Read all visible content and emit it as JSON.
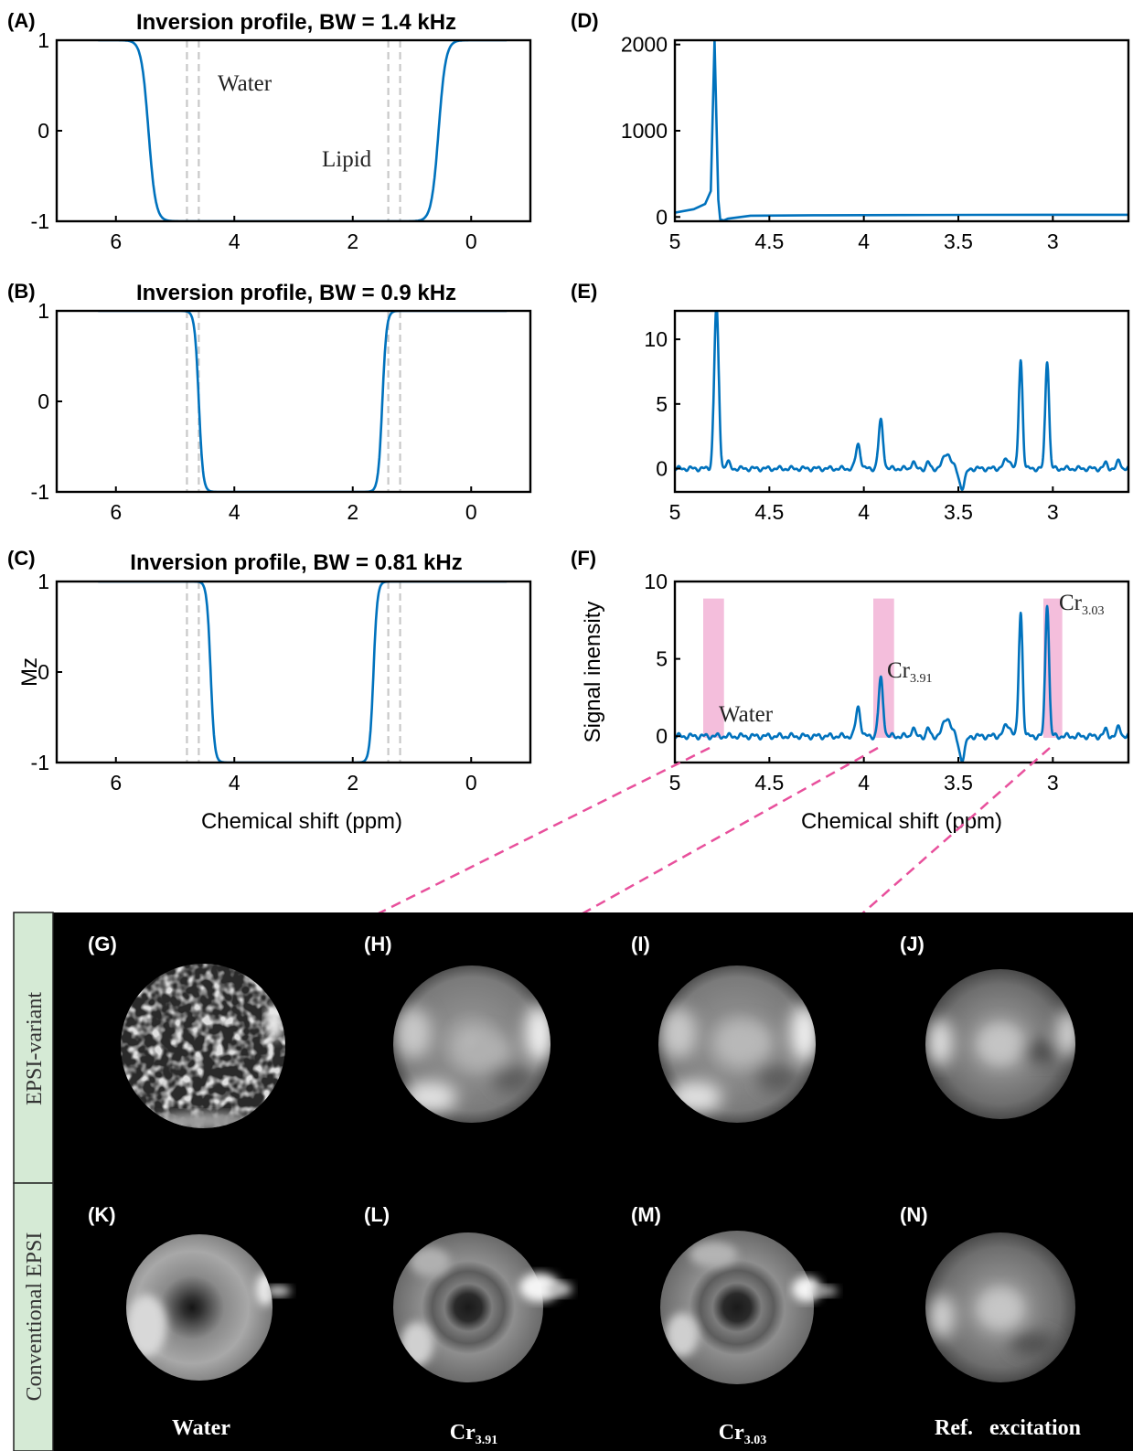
{
  "panels": {
    "A": "(A)",
    "B": "(B)",
    "C": "(C)",
    "D": "(D)",
    "E": "(E)",
    "F": "(F)",
    "G": "(G)",
    "H": "(H)",
    "I": "(I)",
    "J": "(J)",
    "K": "(K)",
    "L": "(L)",
    "M": "(M)",
    "N": "(N)"
  },
  "annotations": {
    "water": "Water",
    "lipid": "Lipid",
    "f_water": "Water",
    "cr": "Cr",
    "cr391_sub": "3.91",
    "cr303_sub": "3.03"
  },
  "row_labels": {
    "top": "EPSI-variant",
    "bottom": "Conventional EPSI"
  },
  "captions": {
    "water": "Water",
    "cr_base": "Cr",
    "cr391_sub": "3.91",
    "cr303_sub": "3.03",
    "ref": "Ref.   excitation"
  },
  "colors": {
    "line": "#0072BD",
    "guide": "#c8c8c8",
    "highlight": "#f0a8d0",
    "arrow": "#e8509c",
    "arrowhead": "#a01a6a",
    "label_bg": "#d5ead5"
  },
  "chart_data": [
    {
      "id": "A",
      "type": "line",
      "title": "Inversion profile, BW = 1.4 kHz",
      "xlabel": "",
      "ylabel": "",
      "xlim": [
        7,
        -1
      ],
      "ylim": [
        -1,
        1
      ],
      "xticks": [
        6,
        4,
        2,
        0
      ],
      "yticks": [
        -1,
        0,
        1
      ],
      "transition_center": [
        5.45,
        0.55
      ],
      "transition_width": 0.12,
      "guides": [
        4.8,
        4.6,
        1.4,
        1.2
      ],
      "series": [
        {
          "x": [
            6.3,
            6.0,
            5.7,
            5.45,
            5.2,
            4.9,
            4.6,
            2.0,
            1.2,
            0.9,
            0.55,
            0.2,
            -0.1,
            -0.6
          ],
          "values": [
            1,
            0.98,
            0.82,
            0,
            -0.82,
            -0.98,
            -1,
            -1,
            -0.98,
            -0.82,
            0,
            0.82,
            0.98,
            1
          ]
        }
      ]
    },
    {
      "id": "B",
      "type": "line",
      "title": "Inversion profile, BW = 0.9 kHz",
      "xlabel": "",
      "ylabel": "",
      "xlim": [
        7,
        -1
      ],
      "ylim": [
        -1,
        1
      ],
      "xticks": [
        6,
        4,
        2,
        0
      ],
      "yticks": [
        -1,
        0,
        1
      ],
      "transition_center": [
        4.6,
        1.5
      ],
      "transition_width": 0.07,
      "guides": [
        4.8,
        4.6,
        1.4,
        1.2
      ],
      "series": [
        {
          "x": [
            6.3,
            4.9,
            4.75,
            4.6,
            4.45,
            4.2,
            2.0,
            1.75,
            1.6,
            1.5,
            1.35,
            1.1,
            -0.6
          ],
          "values": [
            1,
            1,
            0.9,
            0,
            -0.9,
            -1,
            -1,
            -0.98,
            -0.85,
            0,
            0.85,
            1,
            1
          ]
        }
      ]
    },
    {
      "id": "C",
      "type": "line",
      "title": "Inversion profile, BW = 0.81 kHz",
      "xlabel": "Chemical shift (ppm)",
      "ylabel": "Mz",
      "xlim": [
        7,
        -1
      ],
      "ylim": [
        -1,
        1
      ],
      "xticks": [
        6,
        4,
        2,
        0
      ],
      "yticks": [
        -1,
        0,
        1
      ],
      "transition_center": [
        4.4,
        1.65
      ],
      "transition_width": 0.065,
      "guides": [
        4.8,
        4.6,
        1.4,
        1.2
      ],
      "series": [
        {
          "x": [
            6.3,
            4.7,
            4.55,
            4.4,
            4.25,
            4.0,
            2.0,
            1.85,
            1.75,
            1.65,
            1.5,
            1.3,
            -0.6
          ],
          "values": [
            1,
            1,
            0.9,
            0,
            -0.9,
            -1,
            -1,
            -0.98,
            -0.85,
            0,
            0.85,
            1,
            1
          ]
        }
      ]
    },
    {
      "id": "D",
      "type": "line",
      "title": "",
      "xlabel": "",
      "ylabel": "",
      "xlim": [
        5,
        2.6
      ],
      "ylim": [
        -50,
        2050
      ],
      "xticks": [
        5,
        4.5,
        4,
        3.5,
        3
      ],
      "yticks": [
        0,
        1000,
        2000
      ],
      "series": [
        {
          "x": [
            5.0,
            4.9,
            4.84,
            4.81,
            4.79,
            4.77,
            4.76,
            4.74,
            4.72,
            4.6,
            4.2,
            3.8,
            3.4,
            3.0,
            2.6
          ],
          "values": [
            50,
            90,
            150,
            300,
            2050,
            200,
            -30,
            -40,
            -20,
            15,
            20,
            22,
            24,
            25,
            25
          ]
        }
      ]
    },
    {
      "id": "E",
      "type": "line",
      "title": "",
      "xlabel": "",
      "ylabel": "",
      "xlim": [
        5,
        2.6
      ],
      "ylim": [
        -1.8,
        12.2
      ],
      "xticks": [
        5,
        4.5,
        4,
        3.5,
        3
      ],
      "yticks": [
        0,
        5,
        10
      ],
      "peaks": [
        [
          4.78,
          12.5,
          0.012
        ],
        [
          4.72,
          0.5,
          0.01
        ],
        [
          4.03,
          1.9,
          0.012
        ],
        [
          3.91,
          3.7,
          0.012
        ],
        [
          3.74,
          0.6,
          0.008
        ],
        [
          3.66,
          0.5,
          0.008
        ],
        [
          3.56,
          1.2,
          0.02
        ],
        [
          3.48,
          -1.5,
          0.015
        ],
        [
          3.24,
          0.7,
          0.02
        ],
        [
          3.17,
          8.4,
          0.01
        ],
        [
          3.03,
          8.4,
          0.01
        ],
        [
          2.72,
          0.4,
          0.01
        ],
        [
          2.65,
          0.6,
          0.01
        ]
      ],
      "series": [
        {
          "x": [
            5.0,
            4.8,
            4.78,
            4.76,
            4.6,
            4.03,
            3.91,
            3.74,
            3.56,
            3.48,
            3.3,
            3.17,
            3.03,
            2.8,
            2.6
          ],
          "values": [
            0,
            0,
            12.5,
            0,
            0,
            1.9,
            3.7,
            0.5,
            1.2,
            -1.5,
            0,
            8.4,
            8.4,
            0,
            0.3
          ]
        }
      ]
    },
    {
      "id": "F",
      "type": "line",
      "title": "",
      "xlabel": "Chemical shift (ppm)",
      "ylabel": "Signal inensity",
      "xlim": [
        5,
        2.6
      ],
      "ylim": [
        -1.7,
        10
      ],
      "xticks": [
        5,
        4.5,
        4,
        3.5,
        3
      ],
      "yticks": [
        0,
        5,
        10
      ],
      "highlight_bands": [
        [
          4.85,
          4.74
        ],
        [
          3.95,
          3.84
        ],
        [
          3.05,
          2.95
        ]
      ],
      "peaks": [
        [
          4.03,
          1.9,
          0.012
        ],
        [
          3.91,
          3.7,
          0.012
        ],
        [
          3.74,
          0.6,
          0.008
        ],
        [
          3.66,
          0.5,
          0.008
        ],
        [
          3.56,
          1.2,
          0.02
        ],
        [
          3.48,
          -1.5,
          0.015
        ],
        [
          3.24,
          0.7,
          0.02
        ],
        [
          3.17,
          8.0,
          0.01
        ],
        [
          3.03,
          8.6,
          0.01
        ],
        [
          2.72,
          0.4,
          0.01
        ],
        [
          2.65,
          0.6,
          0.01
        ]
      ],
      "series": [
        {
          "x": [
            5.0,
            4.6,
            4.03,
            3.91,
            3.74,
            3.56,
            3.48,
            3.3,
            3.17,
            3.03,
            2.8,
            2.6
          ],
          "values": [
            0,
            0,
            1.9,
            3.7,
            0.5,
            1.2,
            -1.5,
            0,
            8.0,
            8.6,
            0,
            0.3
          ]
        }
      ]
    }
  ]
}
